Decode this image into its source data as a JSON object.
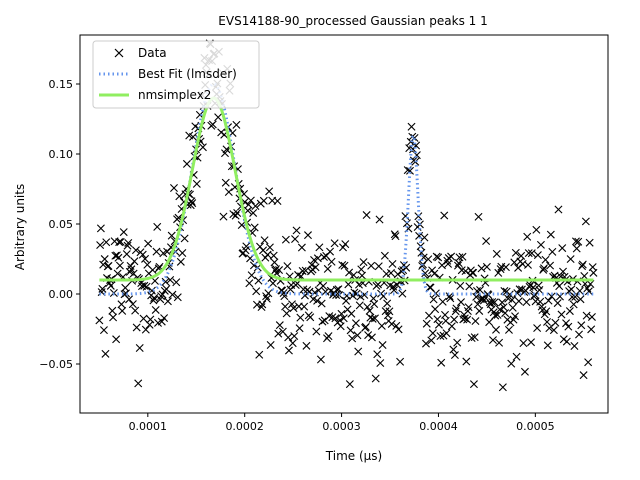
{
  "chart_data": {
    "type": "scatter",
    "title": "EVS14188-90_processed Gaussian peaks 1 1",
    "xlabel": "Time (μs)",
    "ylabel": "Arbitrary units",
    "xlim": [
      3e-05,
      0.000575
    ],
    "ylim": [
      -0.085,
      0.185
    ],
    "xticks": [
      0.0001,
      0.0002,
      0.0003,
      0.0004,
      0.0005
    ],
    "xtick_labels": [
      "0.0001",
      "0.0002",
      "0.0003",
      "0.0004",
      "0.0005"
    ],
    "yticks": [
      -0.05,
      0.0,
      0.05,
      0.1,
      0.15
    ],
    "ytick_labels": [
      "−0.05",
      "0.00",
      "0.05",
      "0.10",
      "0.15"
    ],
    "grid": false,
    "legend_position": "top-left",
    "series": [
      {
        "name": "Data",
        "kind": "markers",
        "marker": "x",
        "color": "#000000"
      },
      {
        "name": "Best Fit (lmsder)",
        "kind": "line",
        "style": "dotted",
        "color": "#6495ed"
      },
      {
        "name": "nmsimplex2",
        "kind": "line",
        "style": "solid",
        "color": "#90ee60"
      }
    ],
    "data_model": {
      "x_start": 5e-05,
      "x_end": 0.00056,
      "count": 650,
      "scatter_sd": 0.022,
      "best_fit": {
        "baseline": 0.0,
        "peaks": [
          {
            "amplitude": 0.15,
            "center": 0.000168,
            "sigma": 2.2e-05
          },
          {
            "amplitude": 0.113,
            "center": 0.000374,
            "sigma": 5e-06
          }
        ]
      },
      "nmsimplex2": {
        "baseline": 0.01,
        "peaks": [
          {
            "amplitude": 0.13,
            "center": 0.000168,
            "sigma": 2.2e-05
          }
        ]
      }
    }
  }
}
